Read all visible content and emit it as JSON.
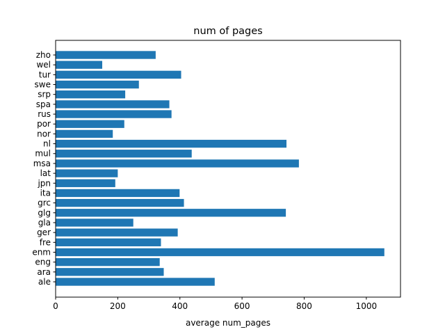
{
  "chart_data": {
    "type": "bar",
    "orientation": "horizontal",
    "title": "num of pages",
    "xlabel": "average num_pages",
    "ylabel": "",
    "categories": [
      "ale",
      "ara",
      "eng",
      "enm",
      "fre",
      "ger",
      "gla",
      "glg",
      "grc",
      "ita",
      "jpn",
      "lat",
      "msa",
      "mul",
      "nl",
      "nor",
      "por",
      "rus",
      "spa",
      "srp",
      "swe",
      "tur",
      "wel",
      "zho"
    ],
    "values": [
      512,
      348,
      335,
      1058,
      339,
      393,
      250,
      741,
      413,
      399,
      192,
      200,
      783,
      438,
      743,
      184,
      221,
      373,
      366,
      224,
      268,
      404,
      150,
      322
    ],
    "xlim": [
      0,
      1110
    ],
    "xticks": [
      0,
      200,
      400,
      600,
      800,
      1000
    ],
    "grid": false,
    "legend": "none",
    "bar_color": "#1f77b4"
  }
}
